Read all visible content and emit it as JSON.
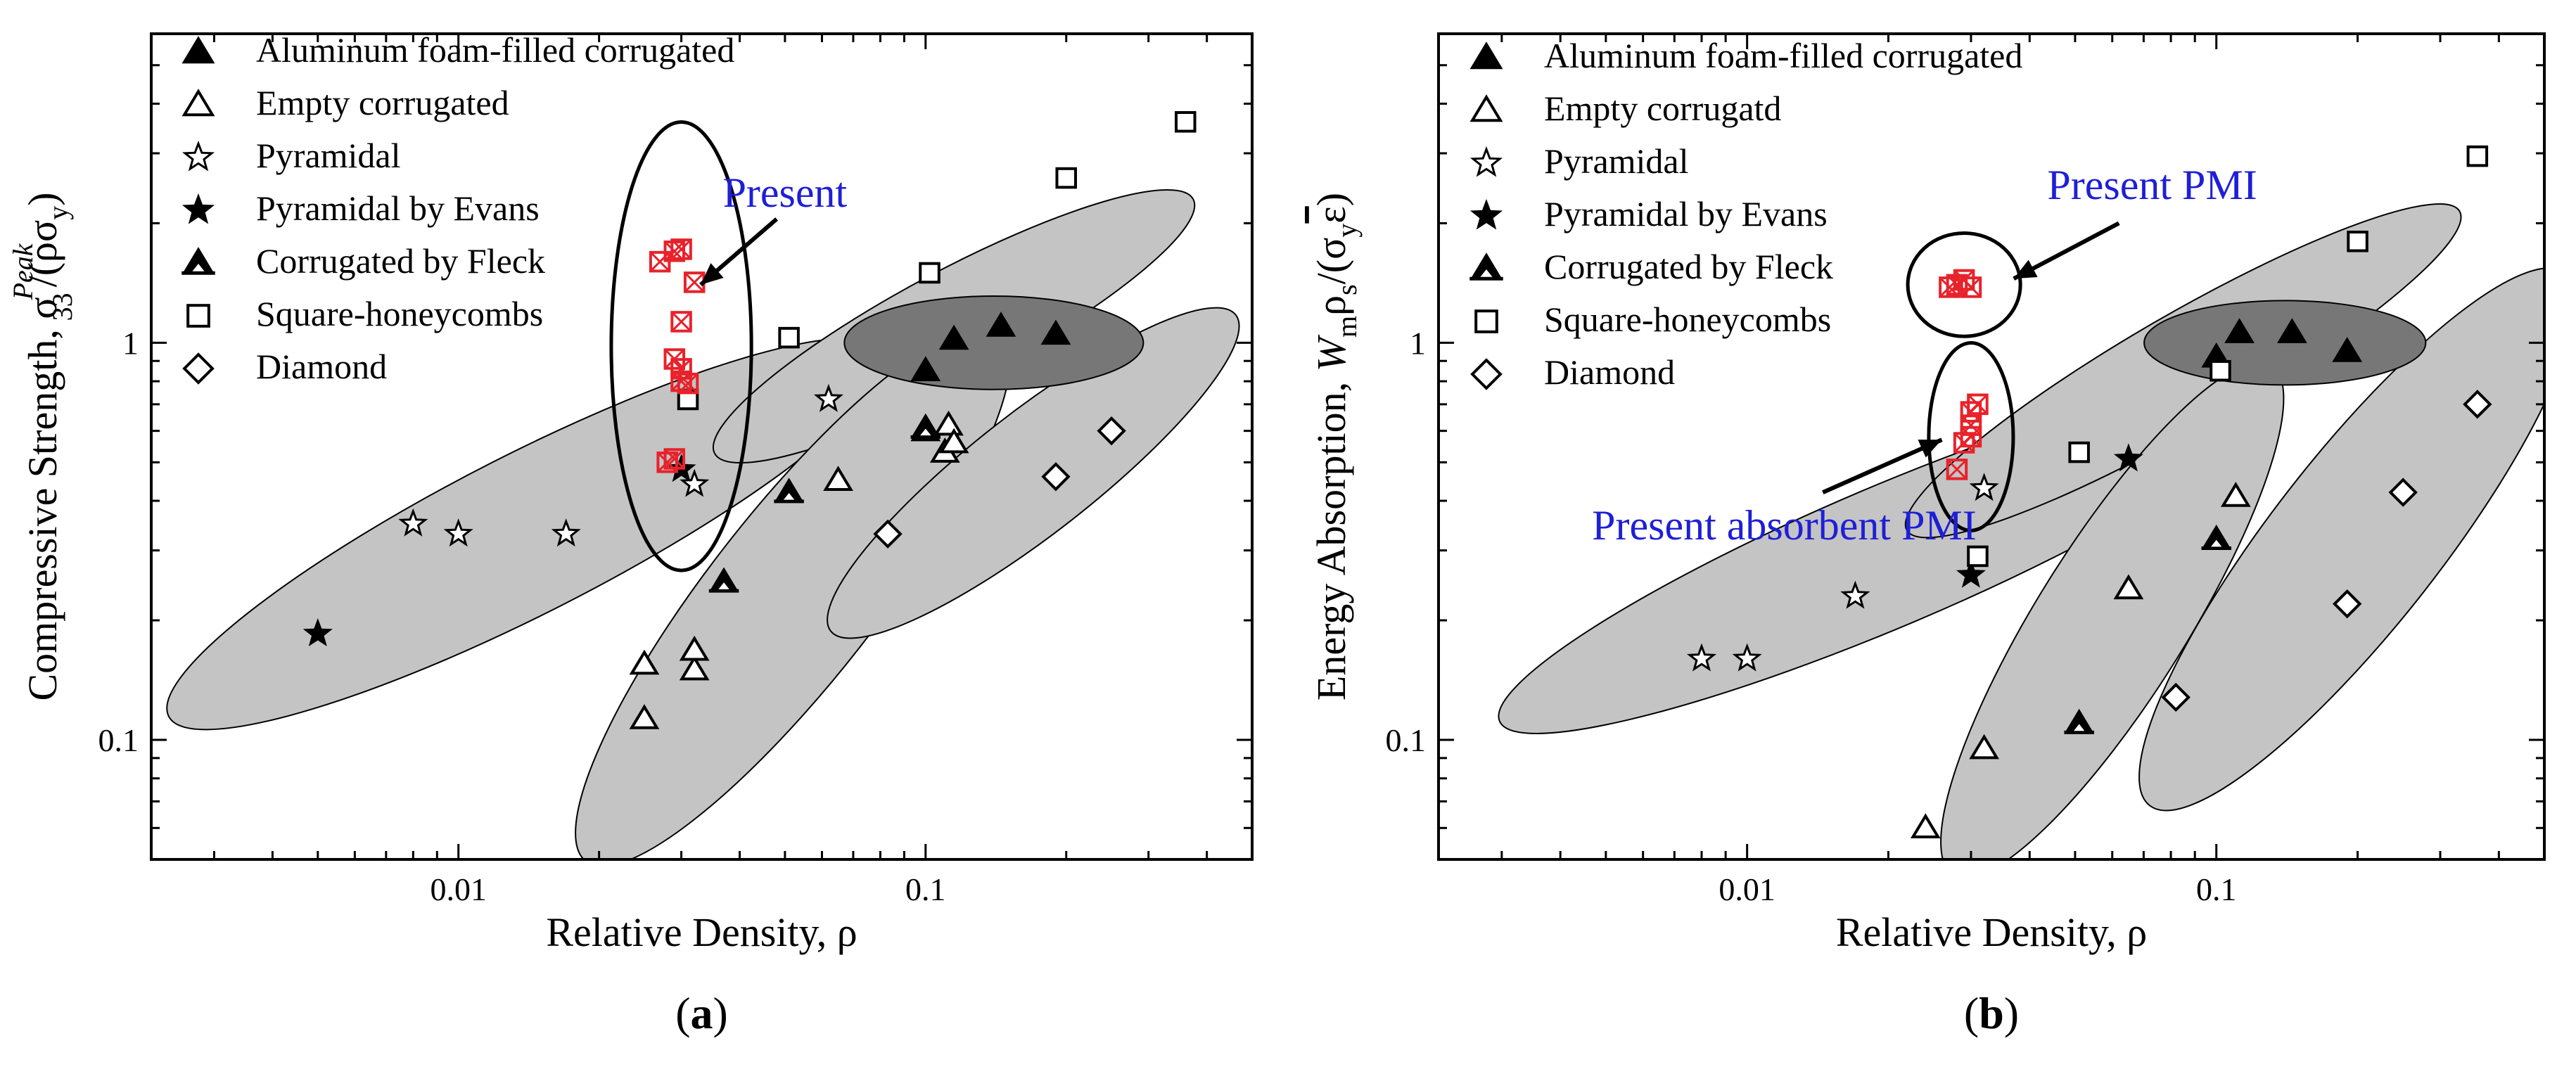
{
  "chart_data": [
    {
      "type": "scatter",
      "panel_label": "(a)",
      "panel_letter": "a",
      "xlabel": "Relative Density, ρ",
      "ylabel_main": "Compressive Strength, σ",
      "ylabel_sub": "33",
      "ylabel_sup": "Peak",
      "ylabel_tail": "/(ρσ",
      "ylabel_tail_sub": "y",
      "ylabel_end": ")",
      "xscale": "log",
      "yscale": "log",
      "xlim": [
        0.0022,
        0.5
      ],
      "ylim": [
        0.05,
        6
      ],
      "xticks": [
        {
          "value": 0.01,
          "label": "0.01"
        },
        {
          "value": 0.1,
          "label": "0.1"
        }
      ],
      "yticks": [
        {
          "value": 0.1,
          "label": "0.1"
        },
        {
          "value": 1,
          "label": "1"
        }
      ],
      "legend_position": "top-left",
      "series": [
        {
          "name": "Aluminum foam-filled corrugated",
          "marker": "filled-triangle",
          "points": [
            [
              0.1,
              0.85
            ],
            [
              0.115,
              1.02
            ],
            [
              0.145,
              1.1
            ],
            [
              0.19,
              1.05
            ]
          ]
        },
        {
          "name": "Empty corrugated",
          "marker": "open-triangle",
          "points": [
            [
              0.025,
              0.155
            ],
            [
              0.025,
              0.113
            ],
            [
              0.032,
              0.15
            ],
            [
              0.032,
              0.168
            ],
            [
              0.065,
              0.45
            ],
            [
              0.1,
              0.6
            ],
            [
              0.11,
              0.53
            ],
            [
              0.112,
              0.62
            ],
            [
              0.115,
              0.56
            ]
          ]
        },
        {
          "name": "Pyramidal",
          "marker": "open-star",
          "points": [
            [
              0.008,
              0.35
            ],
            [
              0.01,
              0.33
            ],
            [
              0.017,
              0.33
            ],
            [
              0.032,
              0.44
            ],
            [
              0.062,
              0.72
            ]
          ]
        },
        {
          "name": "Pyramidal by Evans",
          "marker": "filled-star",
          "points": [
            [
              0.005,
              0.185
            ],
            [
              0.03,
              0.48
            ]
          ]
        },
        {
          "name": "Corrugated by Fleck",
          "marker": "filled-triangle-line",
          "points": [
            [
              0.037,
              0.25
            ],
            [
              0.051,
              0.42
            ],
            [
              0.1,
              0.61
            ]
          ]
        },
        {
          "name": "Square-honeycombs",
          "marker": "open-square",
          "points": [
            [
              0.031,
              0.72
            ],
            [
              0.051,
              1.03
            ],
            [
              0.102,
              1.5
            ],
            [
              0.2,
              2.6
            ],
            [
              0.36,
              3.6
            ]
          ]
        },
        {
          "name": "Diamond",
          "marker": "open-diamond",
          "points": [
            [
              0.083,
              0.33
            ],
            [
              0.19,
              0.46
            ],
            [
              0.25,
              0.6
            ]
          ]
        },
        {
          "name": "Present",
          "marker": "red-boxed-x",
          "in_legend": false,
          "points": [
            [
              0.027,
              1.6
            ],
            [
              0.029,
              1.7
            ],
            [
              0.03,
              1.72
            ],
            [
              0.032,
              1.42
            ],
            [
              0.03,
              1.13
            ],
            [
              0.029,
              0.91
            ],
            [
              0.03,
              0.86
            ],
            [
              0.031,
              0.79
            ],
            [
              0.03,
              0.8
            ],
            [
              0.028,
              0.5
            ],
            [
              0.029,
              0.51
            ]
          ]
        }
      ],
      "ellipses": [
        {
          "cx": 0.014,
          "cy": 0.33,
          "rx_dec": 0.86,
          "ry_dec": 0.17,
          "angle": 27,
          "shade": "light"
        },
        {
          "cx": 0.115,
          "cy": 1.1,
          "rx_dec": 0.58,
          "ry_dec": 0.12,
          "angle": 28,
          "shade": "light"
        },
        {
          "cx": 0.052,
          "cy": 0.23,
          "rx_dec": 0.72,
          "ry_dec": 0.18,
          "angle": 52,
          "shade": "light"
        },
        {
          "cx": 0.17,
          "cy": 0.47,
          "rx_dec": 0.55,
          "ry_dec": 0.13,
          "angle": 38,
          "shade": "light"
        },
        {
          "cx": 0.14,
          "cy": 1.0,
          "rx_dec": 0.32,
          "ry_dec": 0.1,
          "angle": 0,
          "shade": "dark"
        },
        {
          "cx": 0.03,
          "cy": 0.98,
          "rx_dec": 0.15,
          "ry_dec": 0.48,
          "angle": 0,
          "shade": "outline"
        }
      ],
      "annotations": [
        {
          "text": "Present",
          "x": 0.05,
          "y": 2.0,
          "text_x": 0.05,
          "text_y": 2.2,
          "arrow_from": [
            0.048,
            2.05
          ],
          "arrow_to": [
            0.033,
            1.4
          ]
        }
      ]
    },
    {
      "type": "scatter",
      "panel_label": "(b)",
      "panel_letter": "b",
      "xlabel": "Relative Density, ρ",
      "ylabel_main": "Energy Absorption, W",
      "ylabel_sub": "m",
      "ylabel_tail": "ρ",
      "ylabel_tail_sub": "s",
      "ylabel_end": "/(σ",
      "ylabel_end_sub": "y",
      "ylabel_bar": "ε",
      "ylabel_close": ")",
      "xscale": "log",
      "yscale": "log",
      "xlim": [
        0.0022,
        0.5
      ],
      "ylim": [
        0.05,
        6
      ],
      "xticks": [
        {
          "value": 0.01,
          "label": "0.01"
        },
        {
          "value": 0.1,
          "label": "0.1"
        }
      ],
      "yticks": [
        {
          "value": 0.1,
          "label": "0.1"
        },
        {
          "value": 1,
          "label": "1"
        }
      ],
      "legend_position": "top-left",
      "series": [
        {
          "name": "Aluminum foam-filled corrugated",
          "marker": "filled-triangle",
          "points": [
            [
              0.1,
              0.92
            ],
            [
              0.112,
              1.06
            ],
            [
              0.145,
              1.06
            ],
            [
              0.19,
              0.95
            ]
          ]
        },
        {
          "name": "Empty corrugatd",
          "marker": "open-triangle",
          "points": [
            [
              0.024,
              0.06
            ],
            [
              0.032,
              0.095
            ],
            [
              0.065,
              0.24
            ],
            [
              0.11,
              0.41
            ]
          ]
        },
        {
          "name": "Pyramidal",
          "marker": "open-star",
          "points": [
            [
              0.008,
              0.16
            ],
            [
              0.01,
              0.16
            ],
            [
              0.017,
              0.23
            ],
            [
              0.032,
              0.43
            ]
          ]
        },
        {
          "name": "Pyramidal by Evans",
          "marker": "filled-star",
          "points": [
            [
              0.03,
              0.26
            ],
            [
              0.065,
              0.51
            ]
          ]
        },
        {
          "name": "Corrugated by Fleck",
          "marker": "filled-triangle-line",
          "points": [
            [
              0.051,
              0.11
            ],
            [
              0.1,
              0.32
            ]
          ]
        },
        {
          "name": "Square-honeycombs",
          "marker": "open-square",
          "points": [
            [
              0.031,
              0.29
            ],
            [
              0.051,
              0.53
            ],
            [
              0.102,
              0.85
            ],
            [
              0.2,
              1.8
            ],
            [
              0.36,
              2.95
            ]
          ]
        },
        {
          "name": "Diamond",
          "marker": "open-diamond",
          "points": [
            [
              0.082,
              0.128
            ],
            [
              0.19,
              0.22
            ],
            [
              0.25,
              0.42
            ],
            [
              0.36,
              0.7
            ]
          ]
        },
        {
          "name": "Present PMI",
          "marker": "red-boxed-x",
          "in_legend": false,
          "points": [
            [
              0.027,
              1.38
            ],
            [
              0.028,
              1.4
            ],
            [
              0.029,
              1.44
            ],
            [
              0.03,
              1.38
            ]
          ]
        },
        {
          "name": "Present absorbent PMI",
          "marker": "red-boxed-x",
          "in_legend": false,
          "points": [
            [
              0.028,
              0.48
            ],
            [
              0.029,
              0.56
            ],
            [
              0.03,
              0.62
            ],
            [
              0.03,
              0.67
            ],
            [
              0.031,
              0.7
            ],
            [
              0.03,
              0.58
            ]
          ]
        }
      ],
      "ellipses": [
        {
          "cx": 0.02,
          "cy": 0.29,
          "rx_dec": 0.9,
          "ry_dec": 0.15,
          "angle": 23,
          "shade": "light"
        },
        {
          "cx": 0.085,
          "cy": 0.85,
          "rx_dec": 0.68,
          "ry_dec": 0.12,
          "angle": 30,
          "shade": "light"
        },
        {
          "cx": 0.06,
          "cy": 0.2,
          "rx_dec": 0.64,
          "ry_dec": 0.16,
          "angle": 58,
          "shade": "light"
        },
        {
          "cx": 0.2,
          "cy": 0.32,
          "rx_dec": 0.72,
          "ry_dec": 0.18,
          "angle": 52,
          "shade": "light"
        },
        {
          "cx": 0.14,
          "cy": 1.0,
          "rx_dec": 0.3,
          "ry_dec": 0.09,
          "angle": 0,
          "shade": "dark"
        },
        {
          "cx": 0.029,
          "cy": 1.4,
          "rx_dec": 0.12,
          "ry_dec": 0.11,
          "angle": 0,
          "shade": "outline"
        },
        {
          "cx": 0.03,
          "cy": 0.58,
          "rx_dec": 0.09,
          "ry_dec": 0.2,
          "angle": 0,
          "shade": "outline"
        }
      ],
      "annotations": [
        {
          "text": "Present PMI",
          "text_x": 0.073,
          "text_y": 2.3,
          "arrow_from": [
            0.062,
            2.0
          ],
          "arrow_to": [
            0.037,
            1.45
          ]
        },
        {
          "text": "Present absorbent PMI",
          "text_x": 0.012,
          "text_y": 0.32,
          "arrow_from": [
            0.0145,
            0.42
          ],
          "arrow_to": [
            0.026,
            0.57
          ]
        }
      ]
    }
  ],
  "colors": {
    "text": "#000000",
    "annotation": "#1f1fd6",
    "present_marker": "#e8222b",
    "ellipse_light": "#c4c4c4",
    "ellipse_dark": "#777777",
    "axis": "#000000"
  }
}
